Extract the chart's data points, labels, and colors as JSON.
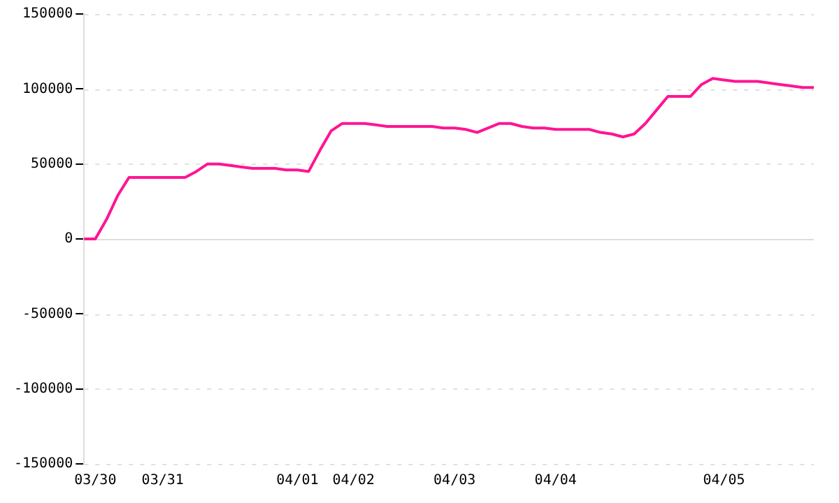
{
  "chart_data": {
    "type": "line",
    "categories": [
      null,
      "03/30",
      null,
      null,
      null,
      null,
      null,
      "03/31",
      null,
      null,
      null,
      null,
      null,
      null,
      null,
      null,
      null,
      null,
      null,
      "04/01",
      null,
      null,
      null,
      null,
      "04/02",
      null,
      null,
      null,
      null,
      null,
      null,
      null,
      null,
      "04/03",
      null,
      null,
      null,
      null,
      null,
      null,
      null,
      null,
      "04/04",
      null,
      null,
      null,
      null,
      null,
      null,
      null,
      null,
      null,
      null,
      null,
      null,
      null,
      null,
      "04/05",
      null,
      null,
      null,
      null,
      null,
      null,
      null,
      null
    ],
    "series": [
      {
        "color": "#ff1493",
        "values": [
          0,
          0,
          13000,
          29000,
          41000,
          41000,
          41000,
          41000,
          41000,
          41000,
          45000,
          50000,
          50000,
          49000,
          48000,
          47000,
          47000,
          47000,
          46000,
          46000,
          45000,
          59000,
          72000,
          77000,
          77000,
          77000,
          76000,
          75000,
          75000,
          75000,
          75000,
          75000,
          74000,
          74000,
          73000,
          71000,
          74000,
          77000,
          77000,
          75000,
          74000,
          74000,
          73000,
          73000,
          73000,
          73000,
          71000,
          70000,
          68000,
          70000,
          77000,
          86000,
          95000,
          95000,
          95000,
          103000,
          107000,
          106000,
          105000,
          105000,
          105000,
          104000,
          103000,
          102000,
          101000,
          101000
        ]
      }
    ],
    "ylim": [
      -150000,
      150000
    ],
    "yticks": [
      -150000,
      -100000,
      -50000,
      0,
      50000,
      100000,
      150000
    ],
    "grid": "y",
    "legend": false,
    "marker": "none",
    "line_style": "solid"
  }
}
